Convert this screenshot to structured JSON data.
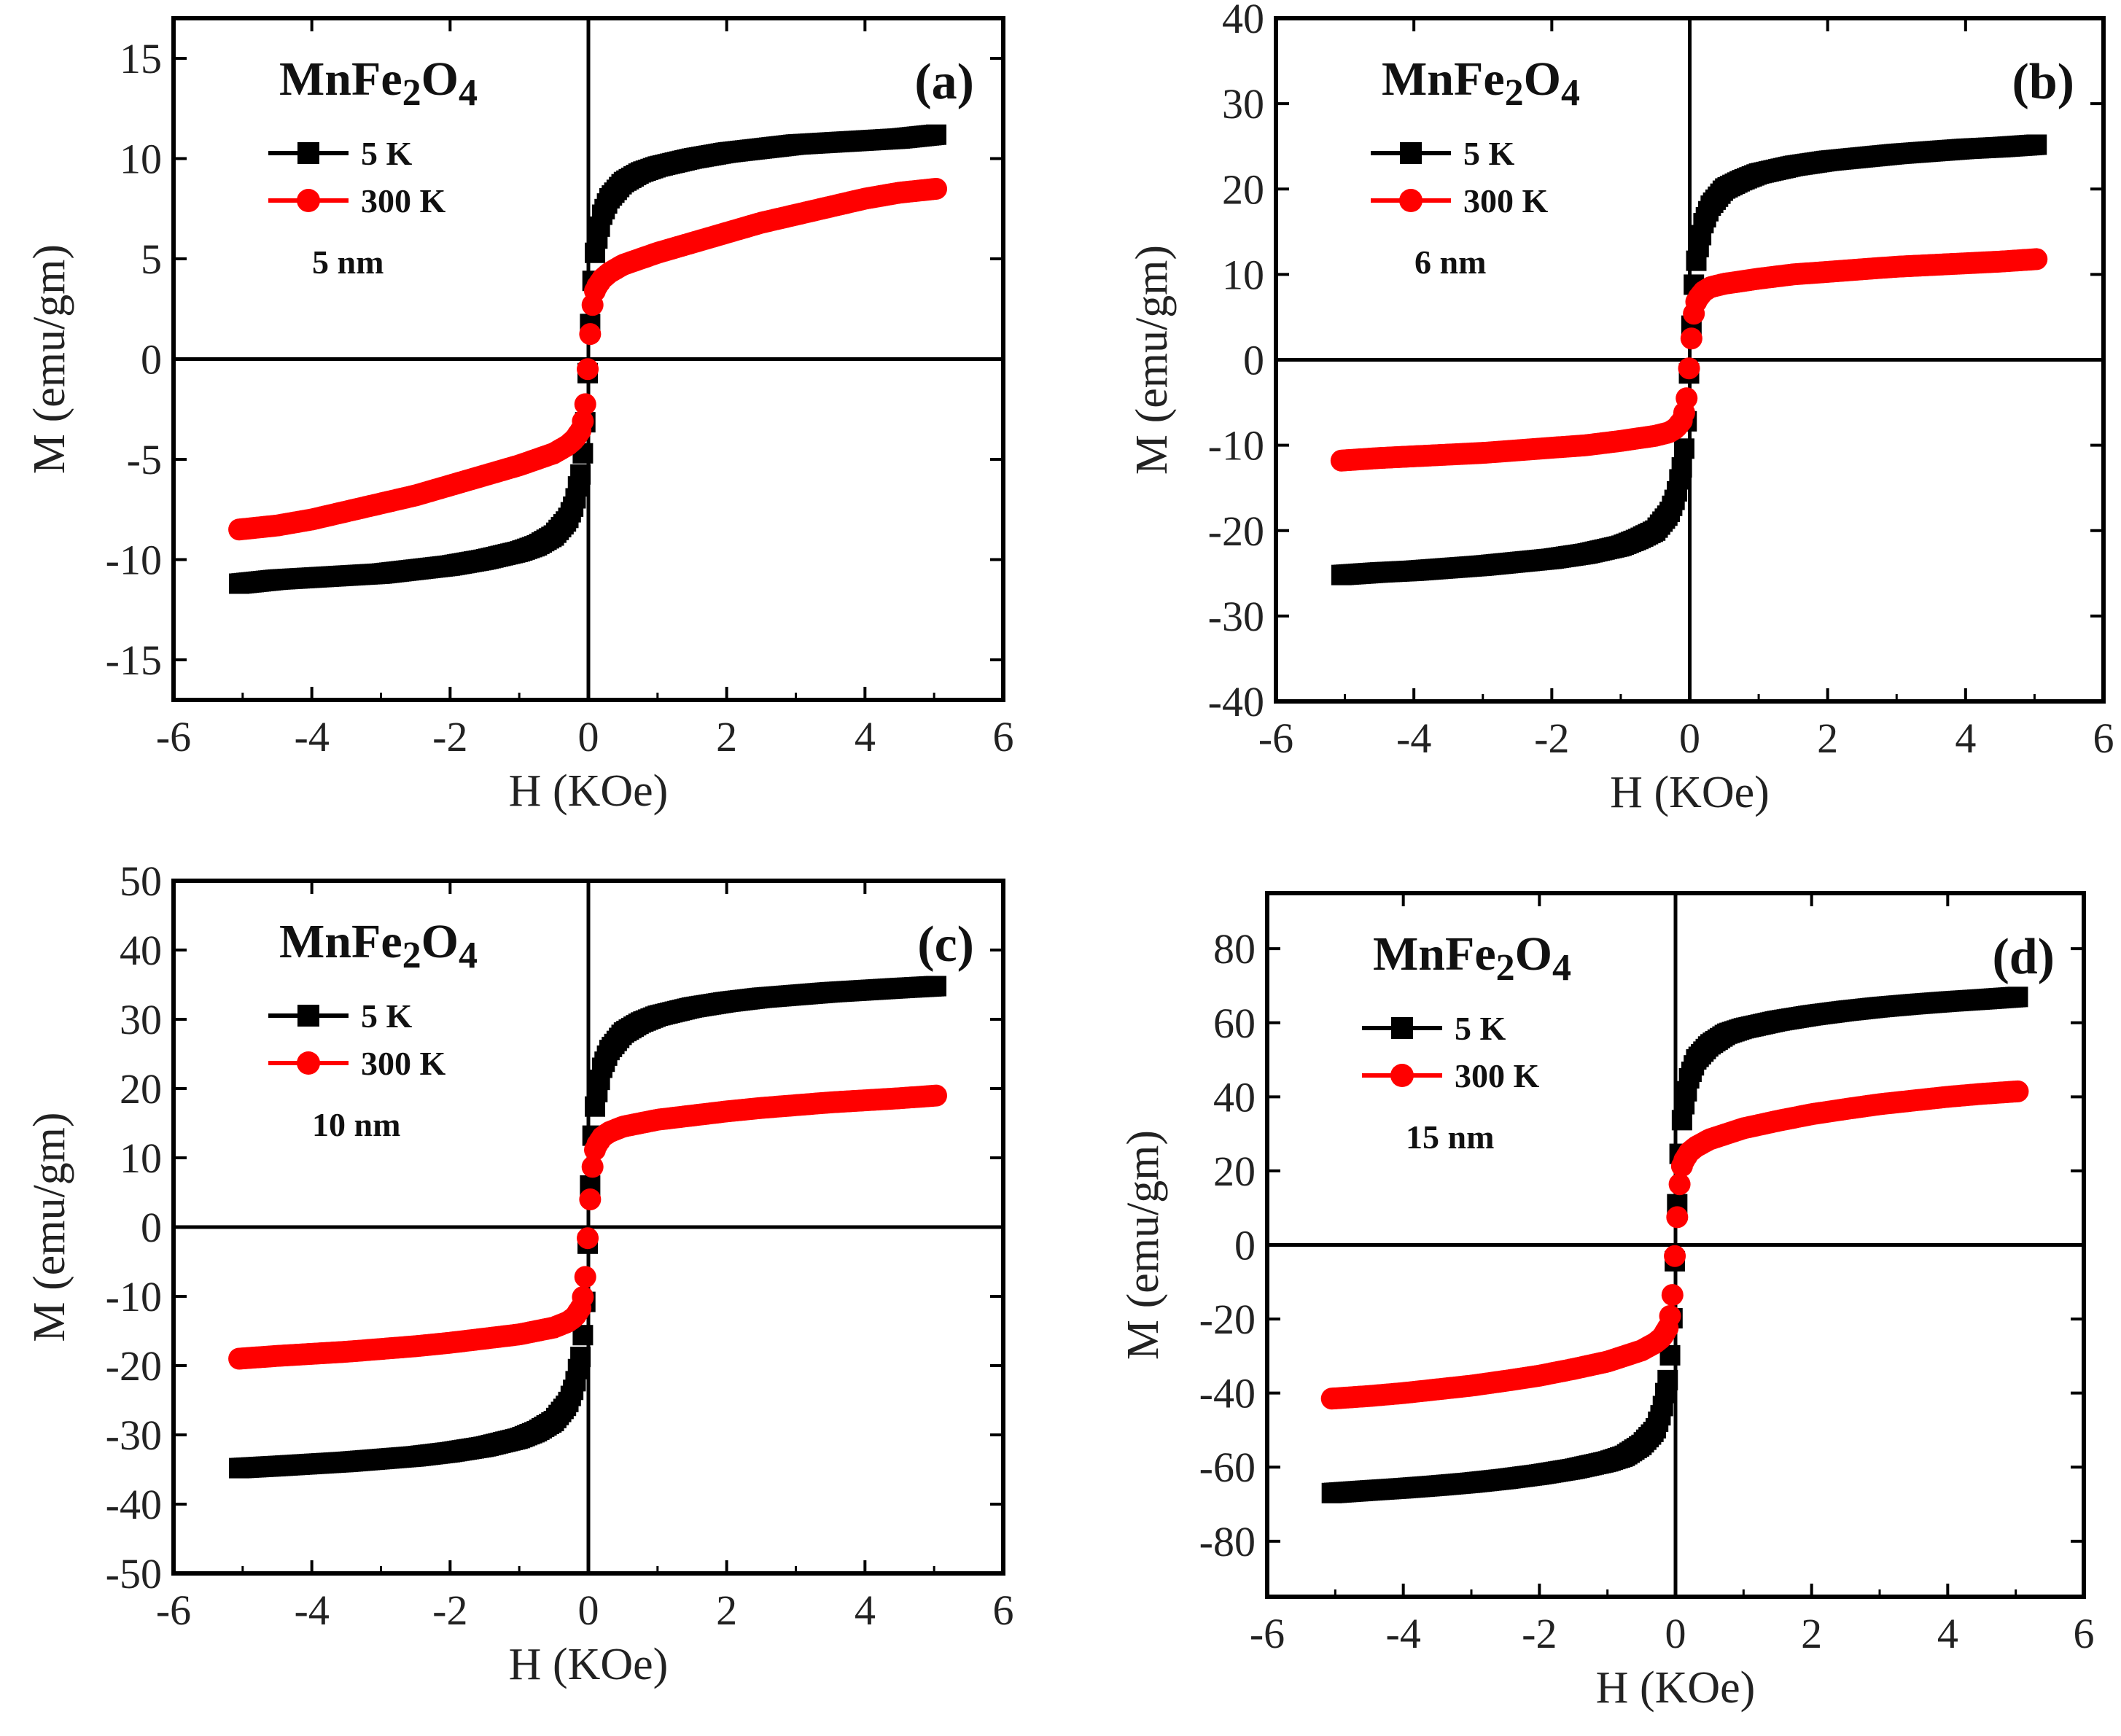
{
  "figure": {
    "compound_html": "MnFe₂O₄",
    "compound_parts": [
      "MnFe",
      "2",
      "O",
      "4"
    ]
  },
  "chart_data": [
    {
      "type": "line",
      "panel_label": "(a)",
      "title": "MnFe2O4",
      "size_label": "5 nm",
      "xlabel": "H (KOe)",
      "ylabel": "M (emu/gm)",
      "xlim": [
        -6,
        6
      ],
      "ylim": [
        -17,
        17
      ],
      "x_ticks": [
        "-6",
        "-4",
        "-2",
        "0",
        "2",
        "4",
        "6"
      ],
      "x_tick_values": [
        -6,
        -4,
        -2,
        0,
        2,
        4,
        6
      ],
      "y_ticks": [
        "-15",
        "-10",
        "-5",
        "0",
        "5",
        "10",
        "15"
      ],
      "y_tick_values": [
        -15,
        -10,
        -5,
        0,
        5,
        10,
        15
      ],
      "series": [
        {
          "name": "5 K",
          "color": "#000000",
          "marker": "square",
          "x": [
            0,
            0.05,
            0.1,
            0.2,
            0.3,
            0.5,
            0.75,
            1,
            1.5,
            2,
            2.5,
            3,
            3.5,
            4,
            4.5,
            5.05
          ],
          "y": [
            0,
            3.5,
            5.5,
            7.2,
            8.0,
            8.8,
            9.3,
            9.6,
            10.0,
            10.3,
            10.5,
            10.7,
            10.8,
            10.9,
            11.0,
            11.2
          ]
        },
        {
          "name": "300 K",
          "color": "#ff0000",
          "marker": "circle",
          "x": [
            0,
            0.05,
            0.1,
            0.2,
            0.3,
            0.5,
            1,
            1.5,
            2,
            2.5,
            3,
            3.5,
            4,
            4.5,
            5.05
          ],
          "y": [
            0,
            2.5,
            3.5,
            4.0,
            4.3,
            4.7,
            5.3,
            5.8,
            6.3,
            6.8,
            7.2,
            7.6,
            8.0,
            8.3,
            8.5
          ]
        }
      ]
    },
    {
      "type": "line",
      "panel_label": "(b)",
      "title": "MnFe2O4",
      "size_label": "6 nm",
      "xlabel": "H (KOe)",
      "ylabel": "M (emu/gm)",
      "xlim": [
        -6,
        6
      ],
      "ylim": [
        -40,
        40
      ],
      "x_ticks": [
        "-6",
        "-4",
        "-2",
        "0",
        "2",
        "4",
        "6"
      ],
      "x_tick_values": [
        -6,
        -4,
        -2,
        0,
        2,
        4,
        6
      ],
      "y_ticks": [
        "-40",
        "-30",
        "-20",
        "-10",
        "0",
        "10",
        "20",
        "30",
        "40"
      ],
      "y_tick_values": [
        -40,
        -30,
        -20,
        -10,
        0,
        10,
        20,
        30,
        40
      ],
      "series": [
        {
          "name": "5 K",
          "color": "#000000",
          "marker": "square",
          "x": [
            0,
            0.05,
            0.1,
            0.2,
            0.3,
            0.5,
            0.75,
            1,
            1.5,
            2,
            2.5,
            3,
            3.5,
            4,
            4.5,
            5.05
          ],
          "y": [
            0,
            8,
            12,
            16,
            18,
            20,
            21,
            21.8,
            22.7,
            23.3,
            23.7,
            24.1,
            24.4,
            24.7,
            24.9,
            25.2
          ]
        },
        {
          "name": "300 K",
          "color": "#ff0000",
          "marker": "circle",
          "x": [
            0,
            0.05,
            0.1,
            0.2,
            0.3,
            0.5,
            1,
            1.5,
            2,
            2.5,
            3,
            3.5,
            4,
            4.5,
            5.05
          ],
          "y": [
            0,
            5,
            7,
            8,
            8.5,
            8.9,
            9.5,
            10.0,
            10.3,
            10.6,
            10.9,
            11.1,
            11.3,
            11.5,
            11.8
          ]
        }
      ]
    },
    {
      "type": "line",
      "panel_label": "(c)",
      "title": "MnFe2O4",
      "size_label": "10 nm",
      "xlabel": "H (KOe)",
      "ylabel": "M (emu/gm)",
      "xlim": [
        -6,
        6
      ],
      "ylim": [
        -50,
        50
      ],
      "x_ticks": [
        "-6",
        "-4",
        "-2",
        "0",
        "2",
        "4",
        "6"
      ],
      "x_tick_values": [
        -6,
        -4,
        -2,
        0,
        2,
        4,
        6
      ],
      "y_ticks": [
        "-50",
        "-40",
        "-30",
        "-20",
        "-10",
        "0",
        "10",
        "20",
        "30",
        "40",
        "50"
      ],
      "y_tick_values": [
        -50,
        -40,
        -30,
        -20,
        -10,
        0,
        10,
        20,
        30,
        40,
        50
      ],
      "series": [
        {
          "name": "5 K",
          "color": "#000000",
          "marker": "square",
          "x": [
            0,
            0.05,
            0.1,
            0.2,
            0.3,
            0.5,
            0.75,
            1,
            1.5,
            2,
            2.5,
            3,
            3.5,
            4,
            4.5,
            5.05
          ],
          "y": [
            0,
            12,
            18,
            23,
            25.5,
            28,
            29.5,
            30.5,
            31.7,
            32.5,
            33.1,
            33.5,
            33.9,
            34.2,
            34.5,
            34.8
          ]
        },
        {
          "name": "300 K",
          "color": "#ff0000",
          "marker": "circle",
          "x": [
            0,
            0.05,
            0.1,
            0.2,
            0.3,
            0.5,
            1,
            1.5,
            2,
            2.5,
            3,
            3.5,
            4,
            4.5,
            5.05
          ],
          "y": [
            0,
            8,
            11.5,
            13,
            13.7,
            14.5,
            15.5,
            16.1,
            16.7,
            17.2,
            17.6,
            18.0,
            18.3,
            18.6,
            19.0
          ]
        }
      ]
    },
    {
      "type": "line",
      "panel_label": "(d)",
      "title": "MnFe2O4",
      "size_label": "15 nm",
      "xlabel": "H (KOe)",
      "ylabel": "M (emu/gm)",
      "xlim": [
        -6,
        6
      ],
      "ylim": [
        -95,
        95
      ],
      "x_ticks": [
        "-6",
        "-4",
        "-2",
        "0",
        "2",
        "4",
        "6"
      ],
      "x_tick_values": [
        -6,
        -4,
        -2,
        0,
        2,
        4,
        6
      ],
      "y_ticks": [
        "-80",
        "-60",
        "-40",
        "-20",
        "0",
        "20",
        "40",
        "60",
        "80"
      ],
      "y_tick_values": [
        -80,
        -60,
        -40,
        -20,
        0,
        20,
        40,
        60,
        80
      ],
      "series": [
        {
          "name": "5 K",
          "color": "#000000",
          "marker": "square",
          "x": [
            0,
            0.05,
            0.1,
            0.2,
            0.3,
            0.5,
            0.75,
            1,
            1.5,
            2,
            2.5,
            3,
            3.5,
            4,
            4.5,
            5.05
          ],
          "y": [
            0,
            22,
            35,
            45,
            50,
            54,
            57,
            58.5,
            60.5,
            62,
            63.2,
            64.2,
            65,
            65.7,
            66.3,
            67
          ]
        },
        {
          "name": "300 K",
          "color": "#ff0000",
          "marker": "circle",
          "x": [
            0,
            0.05,
            0.1,
            0.2,
            0.3,
            0.5,
            1,
            1.5,
            2,
            2.5,
            3,
            3.5,
            4,
            4.5,
            5.05
          ],
          "y": [
            0,
            15,
            22,
            25,
            26.5,
            28.5,
            31.5,
            33.5,
            35.3,
            36.7,
            38,
            39,
            40,
            40.8,
            41.5
          ]
        }
      ]
    }
  ]
}
